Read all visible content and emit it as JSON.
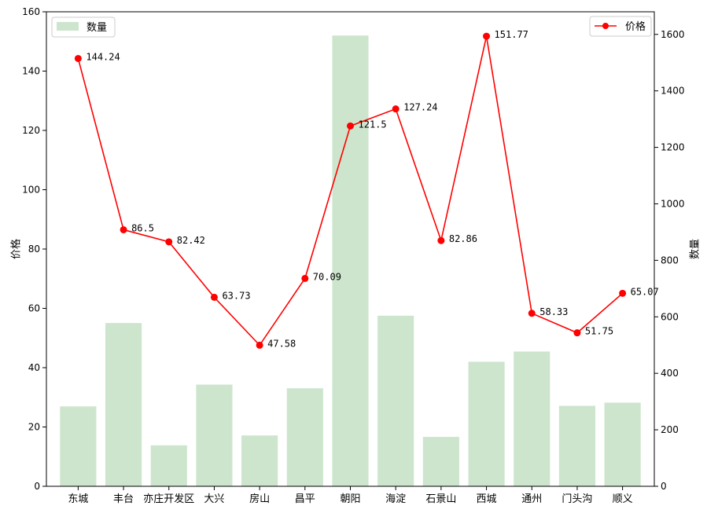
{
  "chart_data": {
    "type": "bar+line",
    "categories": [
      "东城",
      "丰台",
      "亦庄开发区",
      "大兴",
      "房山",
      "昌平",
      "朝阳",
      "海淀",
      "石景山",
      "西城",
      "通州",
      "门头沟",
      "顺义"
    ],
    "series": [
      {
        "name": "数量",
        "kind": "bar",
        "axis": "right",
        "color": "#cde5cd",
        "values": [
          283,
          578,
          145,
          360,
          180,
          347,
          1596,
          604,
          175,
          441,
          477,
          285,
          296
        ]
      },
      {
        "name": "价格",
        "kind": "line",
        "axis": "left",
        "color": "#ff0000",
        "values": [
          144.24,
          86.5,
          82.42,
          63.73,
          47.58,
          70.09,
          121.5,
          127.24,
          82.86,
          151.77,
          58.33,
          51.75,
          65.07
        ],
        "labels": [
          "144.24",
          "86.5",
          "82.42",
          "63.73",
          "47.58",
          "70.09",
          "121.5",
          "127.24",
          "82.86",
          "151.77",
          "58.33",
          "51.75",
          "65.07"
        ]
      }
    ],
    "ylabel": "价格",
    "y2label": "数量",
    "ylim": [
      0,
      160
    ],
    "y2lim": [
      0,
      1680
    ],
    "yticks": [
      "0",
      "20",
      "40",
      "60",
      "80",
      "100",
      "120",
      "140",
      "160"
    ],
    "y2ticks": [
      "0",
      "200",
      "400",
      "600",
      "800",
      "1000",
      "1200",
      "1400",
      "1600"
    ],
    "legend_bar_position": "top-left",
    "legend_line_position": "top-right",
    "grid": false
  }
}
